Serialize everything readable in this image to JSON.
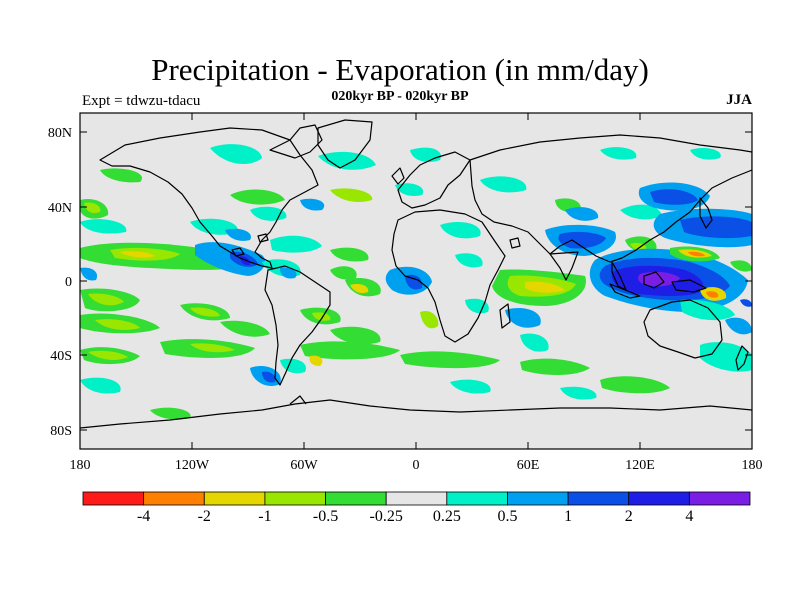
{
  "title": "Precipitation - Evaporation (in mm/day)",
  "subtitle": "020kyr BP - 020kyr BP",
  "experiment_label": "Expt = tdwzu-tdacu",
  "season": "JJA",
  "map": {
    "projection": "cylindrical equidistant",
    "lon_range": [
      -180,
      180
    ],
    "lat_range": [
      -90,
      90
    ],
    "background_color": "#e6e6e6",
    "coastline_color": "#000000",
    "lat_ticks": [
      "80N",
      "40N",
      "0",
      "40S",
      "80S"
    ],
    "lon_ticks": [
      "180",
      "120W",
      "60W",
      "0",
      "60E",
      "120E",
      "180"
    ]
  },
  "colorbar": {
    "colors": [
      "#ff1a1a",
      "#ff8000",
      "#e6d600",
      "#99e600",
      "#33dd33",
      "#e6e6e6",
      "#00f0c8",
      "#00a0f0",
      "#0a50e6",
      "#1e1ee6",
      "#7a1ee6"
    ],
    "labels": [
      "-4",
      "-2",
      "-1",
      "-0.5",
      "-0.25",
      "0.25",
      "0.5",
      "1",
      "2",
      "4"
    ]
  }
}
